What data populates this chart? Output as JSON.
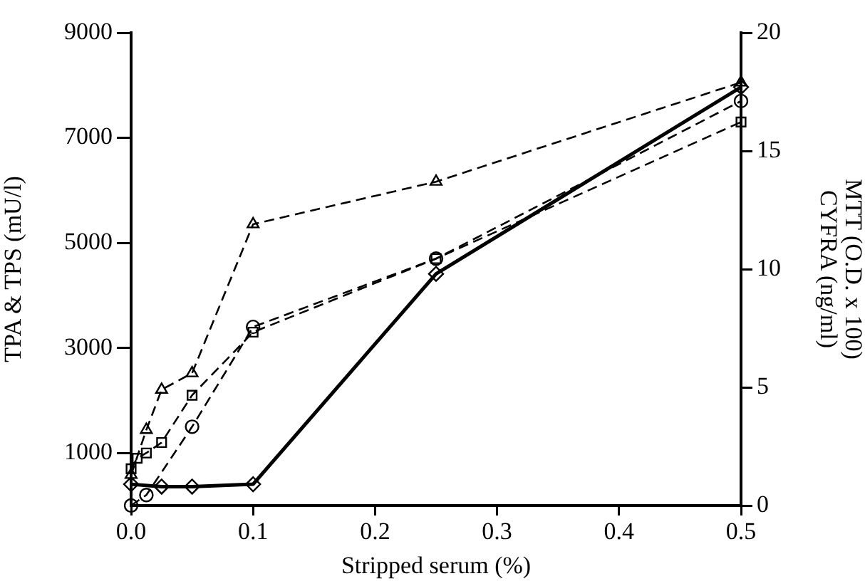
{
  "chart_data": {
    "type": "line",
    "xlabel": "Stripped serum (%)",
    "ylabel": "TPA & TPS (mU/l)",
    "y2label": "MTT (O.D. x 100)\nCYFRA (ng/ml)",
    "xlim": [
      0,
      0.5
    ],
    "xticks": [
      {
        "value": 0,
        "label": "0.0"
      },
      0.1,
      0.2,
      0.3,
      0.4,
      0.5
    ],
    "ylim": [
      0,
      9000
    ],
    "yticks": [
      1000,
      3000,
      5000,
      7000,
      9000
    ],
    "y2lim": [
      0,
      20
    ],
    "y2ticks": [
      0,
      5,
      10,
      15,
      20
    ],
    "grid": false,
    "legend": false,
    "series": [
      {
        "color": "#000000",
        "marker": "circle",
        "line_style": "dashed",
        "x": [
          0,
          0.0125,
          0.05,
          0.1,
          0.25,
          0.5
        ],
        "values": [
          0,
          200,
          1500,
          3400,
          4700,
          7700
        ]
      },
      {
        "color": "#000000",
        "marker": "square",
        "line_style": "dashed",
        "x": [
          0,
          0.005,
          0.0125,
          0.025,
          0.05,
          0.1,
          0.25,
          0.5
        ],
        "values": [
          700,
          900,
          1000,
          1200,
          2100,
          3300,
          4700,
          7300
        ]
      },
      {
        "color": "#000000",
        "marker": "triangle",
        "line_style": "dashed",
        "axis": "y2",
        "x": [
          0,
          0.0125,
          0.025,
          0.05,
          0.1,
          0.25,
          0.5
        ],
        "values": [
          1.3,
          3.2,
          4.9,
          5.6,
          11.9,
          13.7,
          17.9
        ]
      },
      {
        "color": "#000000",
        "marker": "diamond",
        "line_style": "solid",
        "axis": "y2",
        "x": [
          0,
          0.025,
          0.05,
          0.1,
          0.25,
          0.5
        ],
        "values": [
          0.9,
          0.8,
          0.8,
          0.9,
          9.8,
          17.7
        ]
      }
    ]
  }
}
